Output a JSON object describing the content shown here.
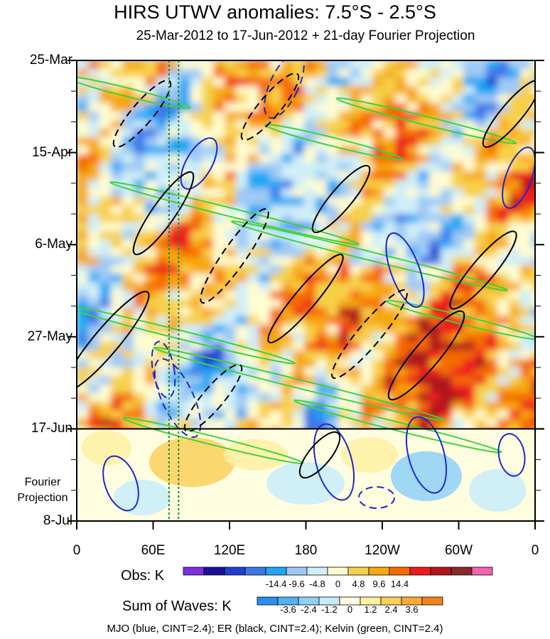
{
  "chart_data": {
    "type": "heatmap",
    "title": "HIRS UTWV anomalies: 7.5°S - 2.5°S",
    "subtitle": "25-Mar-2012 to 17-Jun-2012 + 21-day Fourier Projection",
    "x_tick_labels": [
      "0",
      "60E",
      "120E",
      "180",
      "120W",
      "60W",
      "0"
    ],
    "x_ticks_deg_east": [
      0,
      60,
      120,
      180,
      240,
      300,
      360
    ],
    "y_tick_labels": [
      "25-Mar",
      "15-Apr",
      "6-May",
      "27-May",
      "17-Jun",
      "8-Jul"
    ],
    "y_ticks_dates": [
      "2012-03-25",
      "2012-04-15",
      "2012-05-06",
      "2012-05-27",
      "2012-06-17",
      "2012-07-08"
    ],
    "time_range": [
      "2012-03-25",
      "2012-07-08"
    ],
    "observation_end": "2012-06-17",
    "projection_label": "Fourier Projection",
    "reference_lon_deg_east": [
      72.5,
      80
    ],
    "obs_colorbar": {
      "label": "Obs: K",
      "tick_labels": [
        "-14.4",
        "-9.6",
        "-4.8",
        "0",
        "4.8",
        "9.6",
        "14.4"
      ],
      "colors": [
        "#7a2fe0",
        "#17119a",
        "#1f3fd1",
        "#3d78e8",
        "#1da6f5",
        "#9dc9f5",
        "#cfeef8",
        "#fffdd0",
        "#f7d04a",
        "#f7a70f",
        "#f56a00",
        "#ee1c1c",
        "#b0151b",
        "#8a2a2a",
        "#f263b0"
      ]
    },
    "waves_colorbar": {
      "label": "Sum of Waves: K",
      "tick_labels": [
        "-3.6",
        "-2.4",
        "-1.2",
        "0",
        "1.2",
        "2.4",
        "3.6"
      ],
      "colors": [
        "#2a8ff0",
        "#53b0f5",
        "#8fd0f8",
        "#c8ecf9",
        "#fffde0",
        "#fff0a3",
        "#fcd05a",
        "#f9ad2e",
        "#f4811f"
      ]
    },
    "contours": "MJO (blue, CINT=2.4); ER (black, CINT=2.4); Kelvin (green, CINT=2.4)"
  },
  "colors": {
    "mjo": "#1e28c8",
    "er": "#000000",
    "kelvin": "#3ad43a",
    "reference_lines": "#1f8a2a"
  }
}
